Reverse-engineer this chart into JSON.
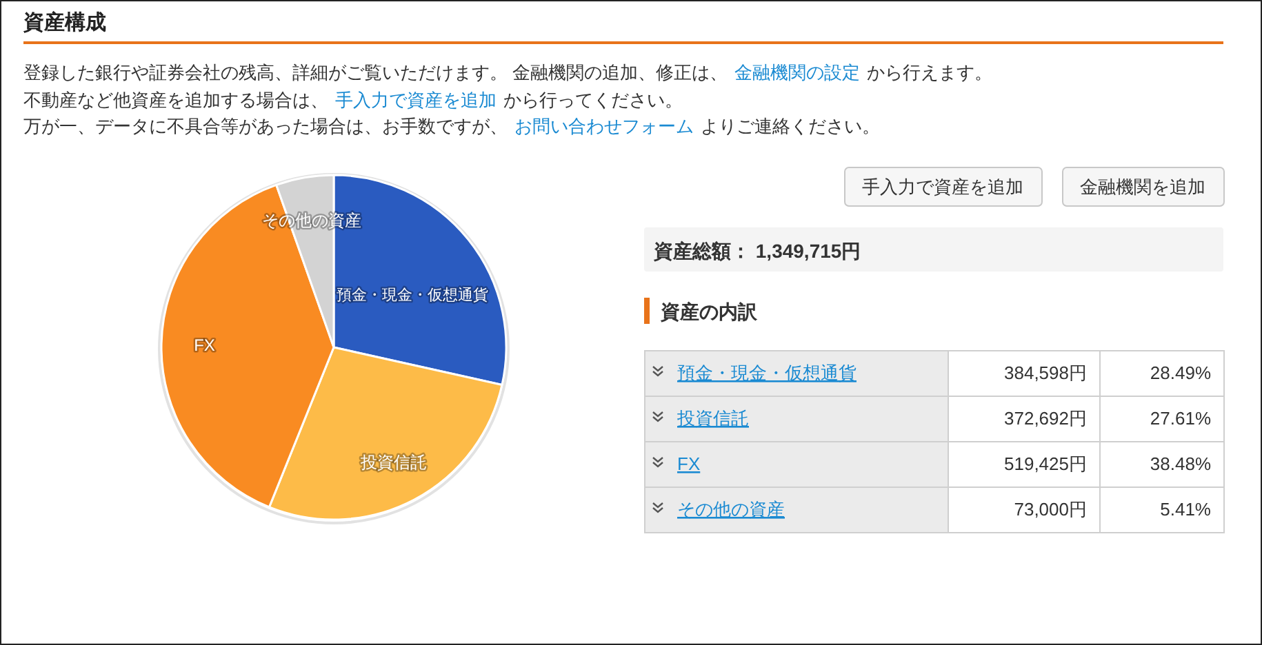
{
  "chart_data": {
    "type": "pie",
    "title": "資産構成",
    "categories": [
      "預金・現金・仮想通貨",
      "投資信託",
      "FX",
      "その他の資産"
    ],
    "values": [
      28.49,
      27.61,
      38.48,
      5.41
    ],
    "colors": [
      "#2a5bc0",
      "#fdbb48",
      "#f98b22",
      "#d3d3d3"
    ],
    "annotations": [
      "登録した銀行や証券会社の残高、詳細がご覧いただけます。 金融機関の追加、修正は、",
      "金融機関の設定",
      "から行えます。",
      "不動産など他資産を追加する場合は、",
      "手入力で資産を追加",
      "から行ってください。",
      "万が一、データに不具合等があった場合は、お手数ですが、",
      "お問い合わせフォーム",
      "よりご連絡ください。",
      "手入力で資産を追加",
      "金融機関を追加",
      "資産総額： 1,349,715円",
      "資産の内訳",
      {
        "text": "384,598円",
        "x": "預金・現金・仮想通貨"
      },
      {
        "text": "372,692円",
        "x": "投資信託"
      },
      {
        "text": "519,425円",
        "x": "FX"
      },
      {
        "text": "73,000円",
        "x": "その他の資産"
      },
      {
        "text": "28.49%",
        "x": "預金・現金・仮想通貨"
      },
      {
        "text": "27.61%",
        "x": "投資信託"
      },
      {
        "text": "38.48%",
        "x": "FX"
      },
      {
        "text": "5.41%",
        "x": "その他の資産"
      }
    ]
  }
}
